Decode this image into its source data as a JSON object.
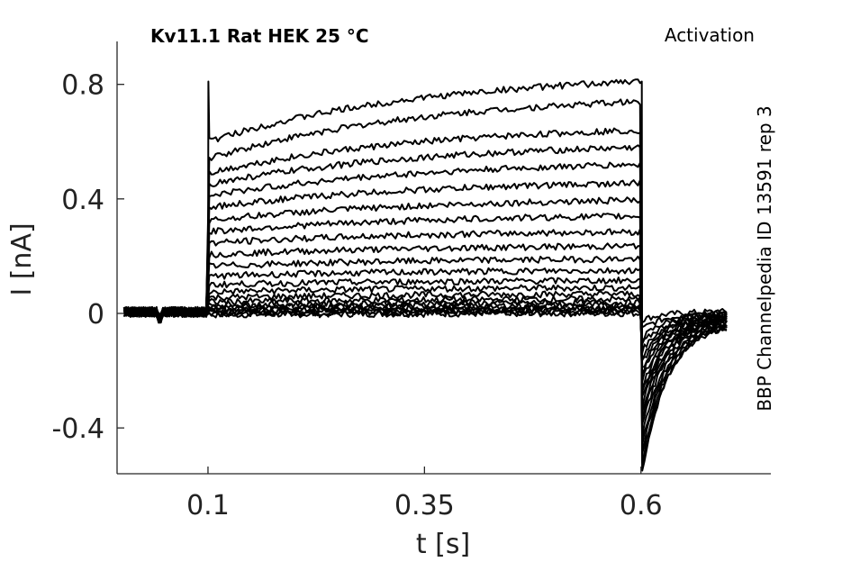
{
  "chart_data": {
    "type": "line",
    "title": "Kv11.1  Rat  HEK  25 °C",
    "protocol_label": "Activation",
    "side_label": "BBP Channelpedia ID 13591 rep 3",
    "xlabel": "t [s]",
    "ylabel": "I [nA]",
    "xlim": [
      -0.005,
      0.75
    ],
    "ylim": [
      -0.56,
      0.95
    ],
    "x_ticks": [
      {
        "value": 0.1,
        "label": "0.1"
      },
      {
        "value": 0.35,
        "label": "0.35"
      },
      {
        "value": 0.6,
        "label": "0.6"
      }
    ],
    "y_ticks": [
      {
        "value": 0.8,
        "label": "0.8"
      },
      {
        "value": 0.4,
        "label": "0.4"
      },
      {
        "value": 0,
        "label": "0"
      },
      {
        "value": -0.4,
        "label": "-0.4"
      }
    ],
    "grid": false,
    "legend": "none",
    "trace_color": "#000000",
    "step_on_s": 0.1,
    "step_off_s": 0.6,
    "trace_end_s": 0.7,
    "series": [
      {
        "start": -0.005,
        "end": 0.0,
        "tail": -0.03
      },
      {
        "start": 0.0,
        "end": 0.005,
        "tail": -0.06
      },
      {
        "start": 0.005,
        "end": 0.01,
        "tail": -0.09
      },
      {
        "start": 0.01,
        "end": 0.015,
        "tail": -0.11
      },
      {
        "start": 0.015,
        "end": 0.02,
        "tail": -0.13
      },
      {
        "start": 0.022,
        "end": 0.028,
        "tail": -0.15
      },
      {
        "start": 0.03,
        "end": 0.038,
        "tail": -0.17
      },
      {
        "start": 0.04,
        "end": 0.05,
        "tail": -0.19
      },
      {
        "start": 0.055,
        "end": 0.068,
        "tail": -0.21
      },
      {
        "start": 0.075,
        "end": 0.09,
        "tail": -0.23
      },
      {
        "start": 0.1,
        "end": 0.115,
        "tail": -0.25
      },
      {
        "start": 0.13,
        "end": 0.15,
        "tail": -0.27
      },
      {
        "start": 0.165,
        "end": 0.19,
        "tail": -0.29
      },
      {
        "start": 0.205,
        "end": 0.235,
        "tail": -0.31
      },
      {
        "start": 0.245,
        "end": 0.285,
        "tail": -0.33
      },
      {
        "start": 0.285,
        "end": 0.34,
        "tail": -0.35
      },
      {
        "start": 0.325,
        "end": 0.395,
        "tail": -0.38
      },
      {
        "start": 0.37,
        "end": 0.455,
        "tail": -0.41
      },
      {
        "start": 0.41,
        "end": 0.52,
        "tail": -0.44
      },
      {
        "start": 0.45,
        "end": 0.58,
        "tail": -0.47
      },
      {
        "start": 0.49,
        "end": 0.64,
        "tail": -0.5
      },
      {
        "start": 0.54,
        "end": 0.74,
        "tail": -0.52
      },
      {
        "start": 0.6,
        "end": 0.81,
        "tail": -0.53
      }
    ]
  }
}
